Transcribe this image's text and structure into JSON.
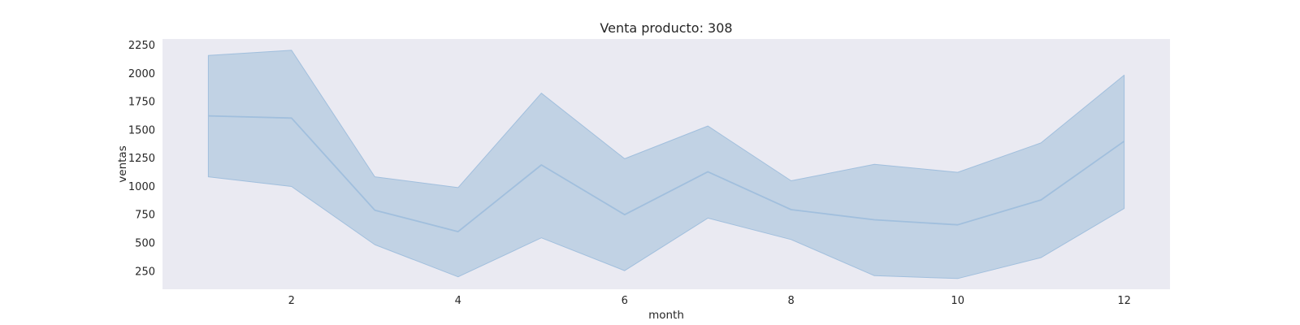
{
  "chart_data": {
    "type": "line",
    "title": "Venta producto: 308",
    "xlabel": "month",
    "ylabel": "ventas",
    "x": [
      1,
      2,
      3,
      4,
      5,
      6,
      7,
      8,
      9,
      10,
      11,
      12
    ],
    "series": [
      {
        "values": [
          1625,
          1605,
          790,
          600,
          1190,
          750,
          1130,
          795,
          705,
          660,
          880,
          1400
        ],
        "lower": [
          1085,
          1000,
          485,
          200,
          545,
          255,
          720,
          530,
          210,
          185,
          370,
          805
        ],
        "upper": [
          2160,
          2205,
          1085,
          990,
          1825,
          1245,
          1535,
          1050,
          1195,
          1125,
          1385,
          1985
        ]
      }
    ],
    "xticks": [
      2,
      4,
      6,
      8,
      10,
      12
    ],
    "yticks": [
      250,
      500,
      750,
      1000,
      1250,
      1500,
      1750,
      2000,
      2250
    ],
    "xlim": [
      0.45,
      12.55
    ],
    "ylim": [
      90,
      2305
    ],
    "grid": false,
    "colors": {
      "line": "#a1bfdd",
      "band": "#c1d2e4",
      "plot_background": "#eaeaf2",
      "text": "#262626"
    }
  }
}
